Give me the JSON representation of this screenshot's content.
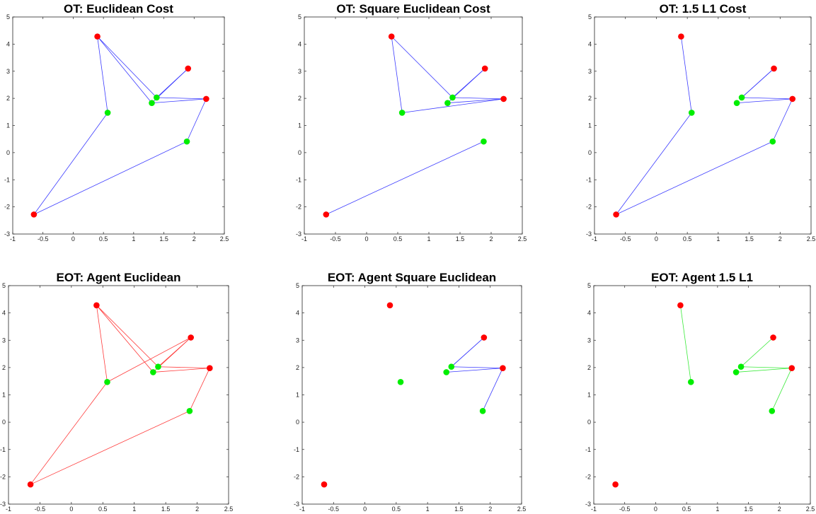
{
  "chart_data": [
    {
      "type": "scatter",
      "title": "OT: Euclidean Cost",
      "xlim": [
        -1,
        2.5
      ],
      "ylim": [
        -3,
        5
      ],
      "xticks": [
        "-1",
        "-0.5",
        "0",
        "0.5",
        "1",
        "1.5",
        "2",
        "2.5"
      ],
      "yticks": [
        "-3",
        "-2",
        "-1",
        "0",
        "1",
        "2",
        "3",
        "4",
        "5"
      ],
      "red_points": [
        [
          0.4,
          4.28
        ],
        [
          1.9,
          3.1
        ],
        [
          2.2,
          1.98
        ],
        [
          -0.65,
          -2.28
        ]
      ],
      "green_points": [
        [
          1.38,
          2.03
        ],
        [
          1.3,
          1.83
        ],
        [
          0.57,
          1.47
        ],
        [
          1.88,
          0.41
        ]
      ],
      "line_color": "#3b3bff",
      "links": [
        [
          0.4,
          4.28,
          1.38,
          2.03
        ],
        [
          0.4,
          4.28,
          1.3,
          1.83
        ],
        [
          0.4,
          4.28,
          0.57,
          1.47
        ],
        [
          1.9,
          3.1,
          1.38,
          2.03
        ],
        [
          1.9,
          3.1,
          1.3,
          1.83
        ],
        [
          2.2,
          1.98,
          1.38,
          2.03
        ],
        [
          2.2,
          1.98,
          1.3,
          1.83
        ],
        [
          2.2,
          1.98,
          1.88,
          0.41
        ],
        [
          -0.65,
          -2.28,
          0.57,
          1.47
        ],
        [
          -0.65,
          -2.28,
          1.88,
          0.41
        ]
      ]
    },
    {
      "type": "scatter",
      "title": "OT: Square Euclidean Cost",
      "xlim": [
        -1,
        2.5
      ],
      "ylim": [
        -3,
        5
      ],
      "xticks": [
        "-1",
        "-0.5",
        "0",
        "0.5",
        "1",
        "1.5",
        "2",
        "2.5"
      ],
      "yticks": [
        "-3",
        "-2",
        "-1",
        "0",
        "1",
        "2",
        "3",
        "4",
        "5"
      ],
      "red_points": [
        [
          0.4,
          4.28
        ],
        [
          1.9,
          3.1
        ],
        [
          2.2,
          1.98
        ],
        [
          -0.65,
          -2.28
        ]
      ],
      "green_points": [
        [
          1.38,
          2.03
        ],
        [
          1.3,
          1.83
        ],
        [
          0.57,
          1.47
        ],
        [
          1.88,
          0.41
        ]
      ],
      "line_color": "#3b3bff",
      "links": [
        [
          0.4,
          4.28,
          1.38,
          2.03
        ],
        [
          0.4,
          4.28,
          0.57,
          1.47
        ],
        [
          1.9,
          3.1,
          1.38,
          2.03
        ],
        [
          1.9,
          3.1,
          1.3,
          1.83
        ],
        [
          2.2,
          1.98,
          1.38,
          2.03
        ],
        [
          2.2,
          1.98,
          1.3,
          1.83
        ],
        [
          2.2,
          1.98,
          0.57,
          1.47
        ],
        [
          -0.65,
          -2.28,
          1.88,
          0.41
        ]
      ]
    },
    {
      "type": "scatter",
      "title": "OT: 1.5 L1 Cost",
      "xlim": [
        -1,
        2.5
      ],
      "ylim": [
        -3,
        5
      ],
      "xticks": [
        "-1",
        "-0.5",
        "0",
        "0.5",
        "1",
        "1.5",
        "2",
        "2.5"
      ],
      "yticks": [
        "-3",
        "-2",
        "-1",
        "0",
        "1",
        "2",
        "3",
        "4",
        "5"
      ],
      "red_points": [
        [
          0.4,
          4.28
        ],
        [
          1.9,
          3.1
        ],
        [
          2.2,
          1.98
        ],
        [
          -0.65,
          -2.28
        ]
      ],
      "green_points": [
        [
          1.38,
          2.03
        ],
        [
          1.3,
          1.83
        ],
        [
          0.57,
          1.47
        ],
        [
          1.88,
          0.41
        ]
      ],
      "line_color": "#3b3bff",
      "links": [
        [
          0.4,
          4.28,
          0.57,
          1.47
        ],
        [
          1.9,
          3.1,
          1.38,
          2.03
        ],
        [
          1.9,
          3.1,
          1.38,
          2.03
        ],
        [
          2.2,
          1.98,
          1.38,
          2.03
        ],
        [
          2.2,
          1.98,
          1.3,
          1.83
        ],
        [
          2.2,
          1.98,
          1.88,
          0.41
        ],
        [
          -0.65,
          -2.28,
          0.57,
          1.47
        ],
        [
          -0.65,
          -2.28,
          1.88,
          0.41
        ]
      ]
    },
    {
      "type": "scatter",
      "title": "EOT: Agent Euclidean",
      "xlim": [
        -1,
        2.5
      ],
      "ylim": [
        -3,
        5
      ],
      "xticks": [
        "-1",
        "-0.5",
        "0",
        "0.5",
        "1",
        "1.5",
        "2",
        "2.5"
      ],
      "yticks": [
        "-3",
        "-2",
        "-1",
        "0",
        "1",
        "2",
        "3",
        "4",
        "5"
      ],
      "red_points": [
        [
          0.4,
          4.28
        ],
        [
          1.9,
          3.1
        ],
        [
          2.2,
          1.98
        ],
        [
          -0.65,
          -2.28
        ]
      ],
      "green_points": [
        [
          1.38,
          2.03
        ],
        [
          1.3,
          1.83
        ],
        [
          0.57,
          1.47
        ],
        [
          1.88,
          0.41
        ]
      ],
      "line_color": "#ff3b3b",
      "links": [
        [
          0.4,
          4.28,
          1.38,
          2.03
        ],
        [
          0.4,
          4.28,
          1.3,
          1.83
        ],
        [
          0.4,
          4.28,
          0.57,
          1.47
        ],
        [
          1.9,
          3.1,
          1.38,
          2.03
        ],
        [
          1.9,
          3.1,
          1.3,
          1.83
        ],
        [
          1.9,
          3.1,
          0.57,
          1.47
        ],
        [
          2.2,
          1.98,
          1.38,
          2.03
        ],
        [
          2.2,
          1.98,
          1.3,
          1.83
        ],
        [
          2.2,
          1.98,
          1.88,
          0.41
        ],
        [
          -0.65,
          -2.28,
          0.57,
          1.47
        ],
        [
          -0.65,
          -2.28,
          1.88,
          0.41
        ]
      ]
    },
    {
      "type": "scatter",
      "title": "EOT: Agent Square Euclidean",
      "xlim": [
        -1,
        2.5
      ],
      "ylim": [
        -3,
        5
      ],
      "xticks": [
        "-1",
        "-0.5",
        "0",
        "0.5",
        "1",
        "1.5",
        "2",
        "2.5"
      ],
      "yticks": [
        "-3",
        "-2",
        "-1",
        "0",
        "1",
        "2",
        "3",
        "4",
        "5"
      ],
      "red_points": [
        [
          0.4,
          4.28
        ],
        [
          1.9,
          3.1
        ],
        [
          2.2,
          1.98
        ],
        [
          -0.65,
          -2.28
        ]
      ],
      "green_points": [
        [
          1.38,
          2.03
        ],
        [
          1.3,
          1.83
        ],
        [
          0.57,
          1.47
        ],
        [
          1.88,
          0.41
        ]
      ],
      "line_color": "#3b3bff",
      "links": [
        [
          1.9,
          3.1,
          1.38,
          2.03
        ],
        [
          1.9,
          3.1,
          1.38,
          2.03
        ],
        [
          2.2,
          1.98,
          1.38,
          2.03
        ],
        [
          2.2,
          1.98,
          1.3,
          1.83
        ],
        [
          2.2,
          1.98,
          1.88,
          0.41
        ]
      ]
    },
    {
      "type": "scatter",
      "title": "EOT: Agent 1.5 L1",
      "xlim": [
        -1,
        2.5
      ],
      "ylim": [
        -3,
        5
      ],
      "xticks": [
        "-1",
        "-0.5",
        "0",
        "0.5",
        "1",
        "1.5",
        "2",
        "2.5"
      ],
      "yticks": [
        "-3",
        "-2",
        "-1",
        "0",
        "1",
        "2",
        "3",
        "4",
        "5"
      ],
      "red_points": [
        [
          0.4,
          4.28
        ],
        [
          1.9,
          3.1
        ],
        [
          2.2,
          1.98
        ],
        [
          -0.65,
          -2.28
        ]
      ],
      "green_points": [
        [
          1.38,
          2.03
        ],
        [
          1.3,
          1.83
        ],
        [
          0.57,
          1.47
        ],
        [
          1.88,
          0.41
        ]
      ],
      "line_color": "#3bea3b",
      "links": [
        [
          0.4,
          4.28,
          0.57,
          1.47
        ],
        [
          1.9,
          3.1,
          1.38,
          2.03
        ],
        [
          2.2,
          1.98,
          1.38,
          2.03
        ],
        [
          2.2,
          1.98,
          1.3,
          1.83
        ],
        [
          2.2,
          1.98,
          1.88,
          0.41
        ]
      ]
    }
  ],
  "colors": {
    "red_point": "#ff0000",
    "green_point": "#00ee00",
    "axes": "#262626"
  }
}
